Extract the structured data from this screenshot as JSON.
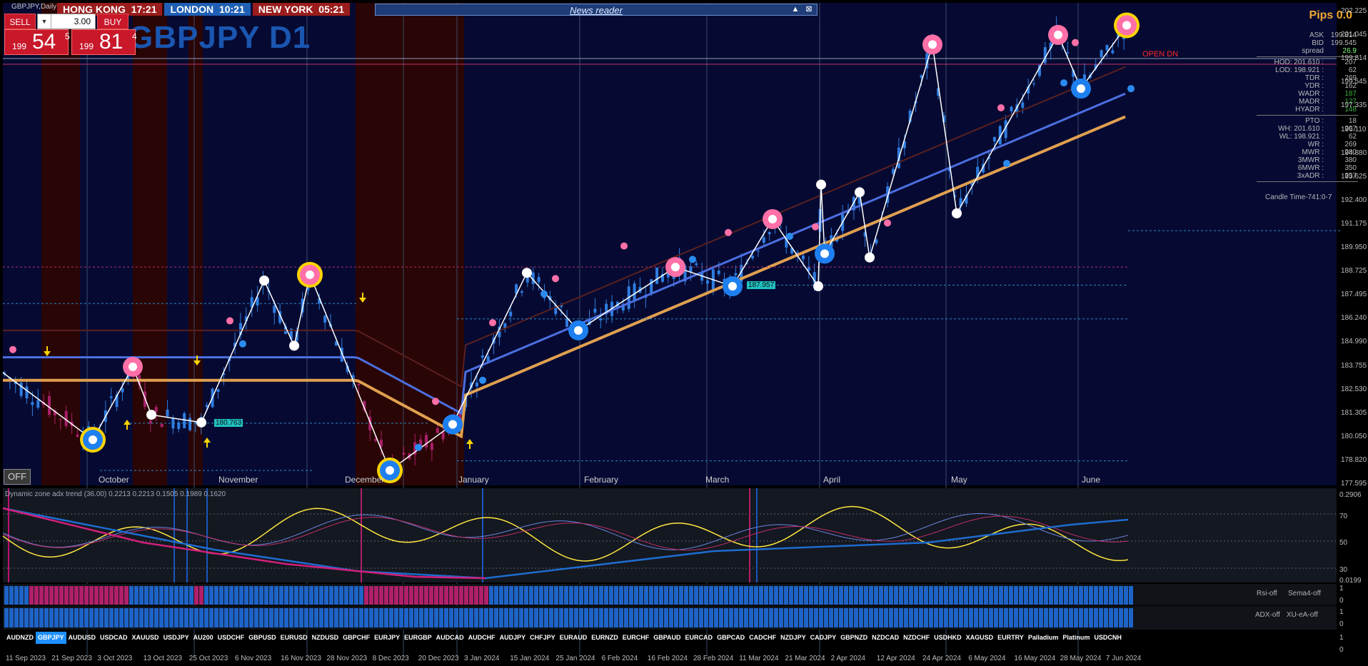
{
  "window": {
    "symbol_label": "GBPJPY,Daily",
    "big_symbol": "GBPJPY D1"
  },
  "sessions": [
    {
      "city": "HONG KONG",
      "time": "17:21"
    },
    {
      "city": "LONDON",
      "time": "10:21"
    },
    {
      "city": "NEW YORK",
      "time": "05:21"
    }
  ],
  "news_reader": {
    "title": "News reader",
    "minimize_glyph": "▲",
    "close_glyph": "⊠"
  },
  "trade_panel": {
    "sell_label": "SELL",
    "buy_label": "BUY",
    "lot": "3.00",
    "sell_price": {
      "small": "199",
      "big": "54",
      "sup": "5"
    },
    "buy_price": {
      "small": "199",
      "big": "81",
      "sup": "4"
    }
  },
  "off_button": "OFF",
  "pips_label": "Pips 0.0",
  "open_label": "OPEN DN",
  "stats": [
    {
      "k": "ASK",
      "v": "199.814"
    },
    {
      "k": "BID",
      "v": "199.545"
    },
    {
      "k": "spread",
      "v": "26.9"
    },
    {
      "k": "HOD: 201.610 :",
      "v": "207"
    },
    {
      "k": "LOD: 198.921 :",
      "v": "62"
    },
    {
      "k": "TDR :",
      "v": "269"
    },
    {
      "k": "YDR :",
      "v": "162"
    },
    {
      "k": "WADR :",
      "v": "187"
    },
    {
      "k": "MADR :",
      "v": "127"
    },
    {
      "k": "HYADR :",
      "v": "148"
    },
    {
      "k": "PTO :",
      "v": "18"
    },
    {
      "k": "WH: 201.610 :",
      "v": "207"
    },
    {
      "k": "WL: 198.921 :",
      "v": "62"
    },
    {
      "k": "WR :",
      "v": "269"
    },
    {
      "k": "MWR :",
      "v": "280"
    },
    {
      "k": "3MWR :",
      "v": "380"
    },
    {
      "k": "6MWR :",
      "v": "350"
    },
    {
      "k": "3xADR :",
      "v": "397"
    }
  ],
  "candle_time": "Candle Time-741:0-7",
  "price_axis": [
    "202.225",
    "201.045",
    "199.814",
    "199.545",
    "197.335",
    "196.110",
    "194.880",
    "193.625",
    "192.400",
    "191.175",
    "189.950",
    "188.725",
    "187.495",
    "186.240",
    "184.990",
    "183.755",
    "182.530",
    "181.305",
    "180.050",
    "178.820",
    "177.595"
  ],
  "month_labels": [
    "October",
    "November",
    "December",
    "January",
    "February",
    "March",
    "April",
    "May",
    "June"
  ],
  "level_labels": [
    "180.763",
    "187.957"
  ],
  "indicator": {
    "label": "Dynamic zone adx trend (36.00) 0.2213 0.2213 0.1505 0.1989 0.1620",
    "axis": [
      "0.2906",
      "70",
      "50",
      "30",
      "0.0199"
    ]
  },
  "lower_panels": {
    "rsi_off": "Rsi-off",
    "sema_off": "Sema4-off",
    "adx_off": "ADX-off",
    "xu_off": "XU-eA-off",
    "axis": [
      "1",
      "0",
      "1",
      "0",
      "1",
      "0"
    ]
  },
  "symbol_bar": [
    "AUDNZD",
    "GBPJPY",
    "AUDUSD",
    "USDCAD",
    "XAUUSD",
    "USDJPY",
    "AU200",
    "USDCHF",
    "GBPUSD",
    "EURUSD",
    "NZDUSD",
    "GBPCHF",
    "EURJPY",
    "EURGBP",
    "AUDCAD",
    "AUDCHF",
    "AUDJPY",
    "CHFJPY",
    "EURAUD",
    "EURNZD",
    "EURCHF",
    "GBPAUD",
    "EURCAD",
    "GBPCAD",
    "CADCHF",
    "NZDJPY",
    "CADJPY",
    "GBPNZD",
    "NZDCAD",
    "NZDCHF",
    "USDHKD",
    "XAGUSD",
    "EURTRY",
    "Palladium",
    "Platinum",
    "USDCNH"
  ],
  "active_symbol": "GBPJPY",
  "date_axis": [
    "11 Sep 2023",
    "21 Sep 2023",
    "3 Oct 2023",
    "13 Oct 2023",
    "25 Oct 2023",
    "6 Nov 2023",
    "16 Nov 2023",
    "28 Nov 2023",
    "8 Dec 2023",
    "20 Dec 2023",
    "3 Jan 2024",
    "15 Jan 2024",
    "25 Jan 2024",
    "6 Feb 2024",
    "16 Feb 2024",
    "28 Feb 2024",
    "11 Mar 2024",
    "21 Mar 2024",
    "2 Apr 2024",
    "12 Apr 2024",
    "24 Apr 2024",
    "6 May 2024",
    "16 May 2024",
    "28 May 2024",
    "7 Jun 2024"
  ],
  "chart_data": {
    "type": "line",
    "series": [
      {
        "name": "zigzag",
        "values": [
          183.4,
          179.9,
          183.7,
          181.2,
          180.8,
          188.2,
          184.8,
          188.5,
          178.3,
          180.7,
          188.6,
          185.6,
          188.9,
          187.9,
          191.4,
          187.9,
          193.2,
          189.6,
          192.8,
          189.4,
          200.5,
          191.7,
          201.0,
          198.2,
          201.5
        ]
      }
    ],
    "ylim": [
      177.595,
      202.225
    ]
  },
  "colors": {
    "bg": "#060a32",
    "bear_zone": "#2a0505",
    "candle_up": "#2f7de0",
    "candle_down": "#a8206a",
    "ma_gold": "#e0a050",
    "ma_blue": "#4c6fe0",
    "pink": "#ff6fa8",
    "yellow_ring": "#ffd400",
    "rsi_yellow": "#ffe640"
  }
}
